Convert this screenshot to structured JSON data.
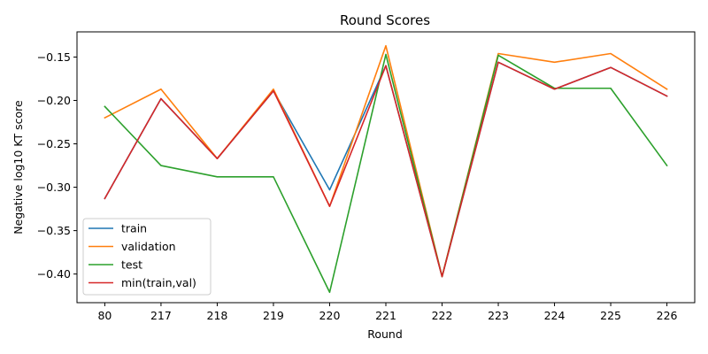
{
  "chart_data": {
    "type": "line",
    "title": "Round Scores",
    "xlabel": "Round",
    "ylabel": "Negative log10 KT score",
    "categories": [
      "80",
      "217",
      "218",
      "219",
      "220",
      "221",
      "222",
      "223",
      "224",
      "225",
      "226"
    ],
    "yticks": [
      -0.4,
      -0.35,
      -0.3,
      -0.25,
      -0.2,
      -0.15
    ],
    "ytick_labels": [
      "−0.40",
      "−0.35",
      "−0.30",
      "−0.25",
      "−0.20",
      "−0.15"
    ],
    "ylim": [
      -0.433,
      -0.121
    ],
    "grid": false,
    "legend_position": "lower-left",
    "series": [
      {
        "name": "train",
        "color": "#1f77b4",
        "values": [
          -0.313,
          -0.198,
          -0.267,
          -0.189,
          -0.303,
          -0.16,
          -0.403,
          -0.156,
          -0.187,
          -0.162,
          -0.195
        ]
      },
      {
        "name": "validation",
        "color": "#ff7f0e",
        "values": [
          -0.22,
          -0.187,
          -0.267,
          -0.187,
          -0.322,
          -0.137,
          -0.403,
          -0.146,
          -0.156,
          -0.146,
          -0.187
        ]
      },
      {
        "name": "test",
        "color": "#2ca02c",
        "values": [
          -0.207,
          -0.275,
          -0.288,
          -0.288,
          -0.421,
          -0.147,
          -0.403,
          -0.148,
          -0.186,
          -0.186,
          -0.275
        ]
      },
      {
        "name": "min(train,val)",
        "color": "#d62728",
        "values": [
          -0.313,
          -0.198,
          -0.267,
          -0.189,
          -0.322,
          -0.16,
          -0.403,
          -0.156,
          -0.187,
          -0.162,
          -0.195
        ]
      }
    ]
  }
}
